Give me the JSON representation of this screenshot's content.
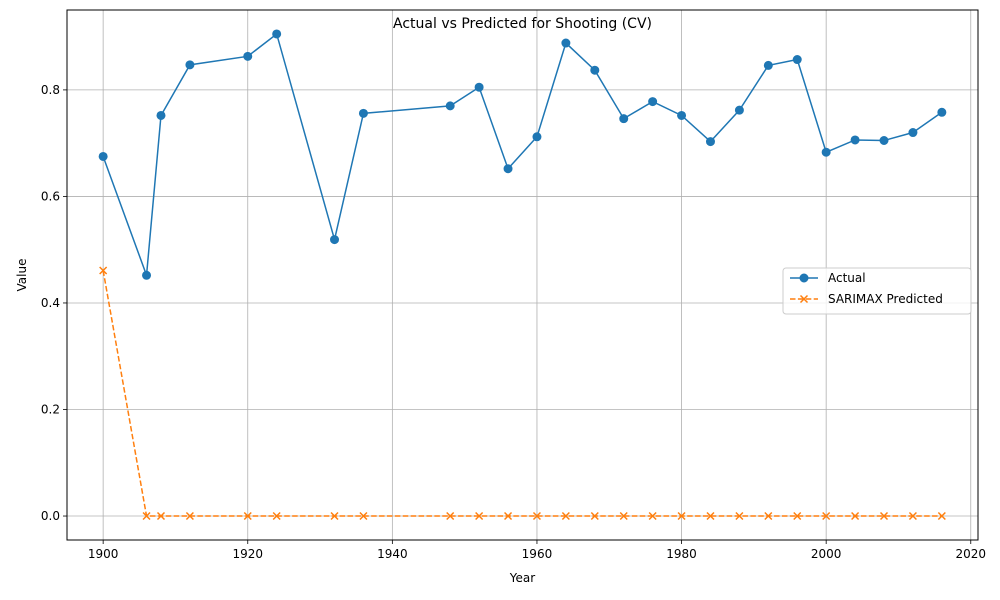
{
  "chart_data": {
    "type": "line",
    "title": "Actual vs Predicted for Shooting (CV)",
    "xlabel": "Year",
    "ylabel": "Value",
    "xlim": [
      1895,
      2021
    ],
    "ylim": [
      -0.045,
      0.95
    ],
    "xticks": [
      1900,
      1920,
      1940,
      1960,
      1980,
      2000,
      2020
    ],
    "yticks": [
      0.0,
      0.2,
      0.4,
      0.6,
      0.8
    ],
    "grid": true,
    "legend_position": "center-right",
    "x": [
      1900,
      1906,
      1908,
      1912,
      1920,
      1924,
      1932,
      1936,
      1948,
      1952,
      1956,
      1960,
      1964,
      1968,
      1972,
      1976,
      1980,
      1984,
      1988,
      1992,
      1996,
      2000,
      2004,
      2008,
      2012,
      2016
    ],
    "series": [
      {
        "name": "Actual",
        "color": "#1f77b4",
        "marker": "circle",
        "linestyle": "solid",
        "values": [
          0.675,
          0.452,
          0.752,
          0.847,
          0.863,
          0.905,
          0.519,
          0.756,
          0.77,
          0.805,
          0.652,
          0.712,
          0.888,
          0.837,
          0.746,
          0.778,
          0.752,
          0.703,
          0.762,
          0.846,
          0.857,
          0.683,
          0.706,
          0.705,
          0.72,
          0.758
        ]
      },
      {
        "name": "SARIMAX Predicted",
        "color": "#ff7f0e",
        "marker": "x",
        "linestyle": "dashed",
        "values": [
          0.461,
          0.0,
          0.0,
          0.0,
          0.0,
          0.0,
          0.0,
          0.0,
          0.0,
          0.0,
          0.0,
          0.0,
          0.0,
          0.0,
          0.0,
          0.0,
          0.0,
          0.0,
          0.0,
          0.0,
          0.0,
          0.0,
          0.0,
          0.0,
          0.0,
          0.0
        ]
      }
    ]
  }
}
